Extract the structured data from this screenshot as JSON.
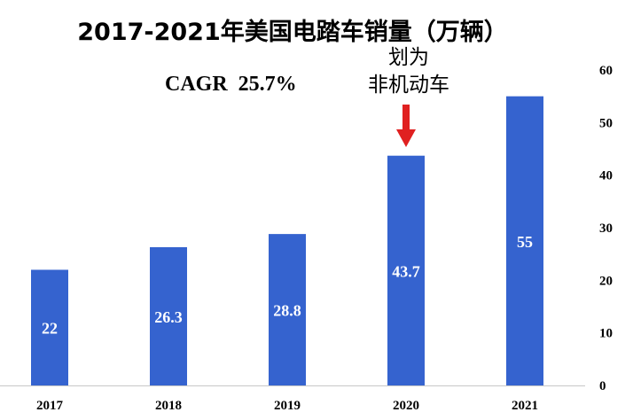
{
  "chart_data": {
    "type": "bar",
    "title": "2017-2021年美国电踏车销量（万辆）",
    "categories": [
      "2017",
      "2018",
      "2019",
      "2020",
      "2021"
    ],
    "values": [
      22,
      26.3,
      28.8,
      43.7,
      55
    ],
    "data_labels": [
      "22",
      "26.3",
      "28.8",
      "43.7",
      "55"
    ],
    "ylim": [
      0,
      60
    ],
    "yticks": [
      0,
      10,
      20,
      30,
      40,
      50,
      60
    ],
    "y_axis_side": "right",
    "grid": false,
    "bar_color": "#3563CF",
    "annotations": [
      {
        "text": "CAGR  25.7%"
      },
      {
        "lines": [
          "划为",
          "非机动车"
        ],
        "target_category": "2020",
        "arrow_color": "#E02020"
      }
    ]
  }
}
